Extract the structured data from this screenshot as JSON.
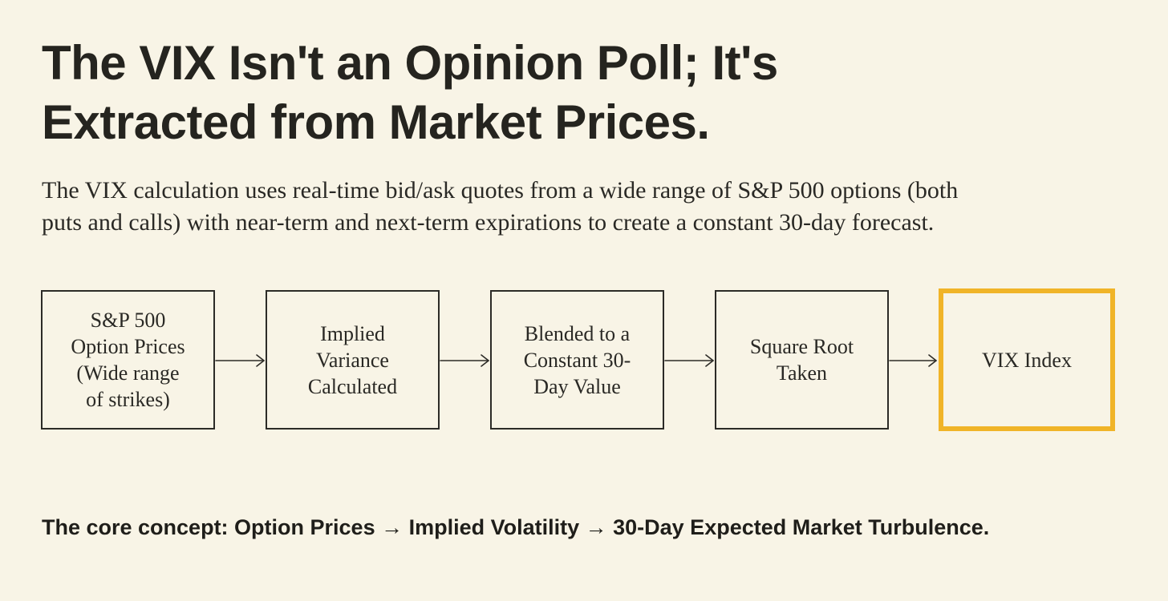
{
  "title": {
    "line1": "The VIX Isn't an Opinion Poll; It's",
    "line2": "Extracted from Market Prices."
  },
  "subtitle": {
    "line1": "The VIX calculation uses real-time bid/ask quotes from a wide range of S&P 500 options (both",
    "line2": "puts and calls) with near-term and next-term expirations to create a constant 30-day forecast."
  },
  "flow": {
    "steps": [
      {
        "lines": [
          "S&P 500",
          "Option Prices",
          "(Wide range",
          "of strikes)"
        ]
      },
      {
        "lines": [
          "Implied",
          "Variance",
          "Calculated"
        ]
      },
      {
        "lines": [
          "Blended to a",
          "Constant 30-",
          "Day Value"
        ]
      },
      {
        "lines": [
          "Square Root",
          "Taken"
        ]
      },
      {
        "lines": [
          "VIX Index"
        ]
      }
    ],
    "highlight_color": "#f0b428",
    "border_color": "#2c2b27"
  },
  "footer": "The core concept: Option Prices → Implied Volatility → 30-Day Expected Market Turbulence.",
  "colors": {
    "background": "#f8f4e6",
    "text": "#23221e"
  }
}
